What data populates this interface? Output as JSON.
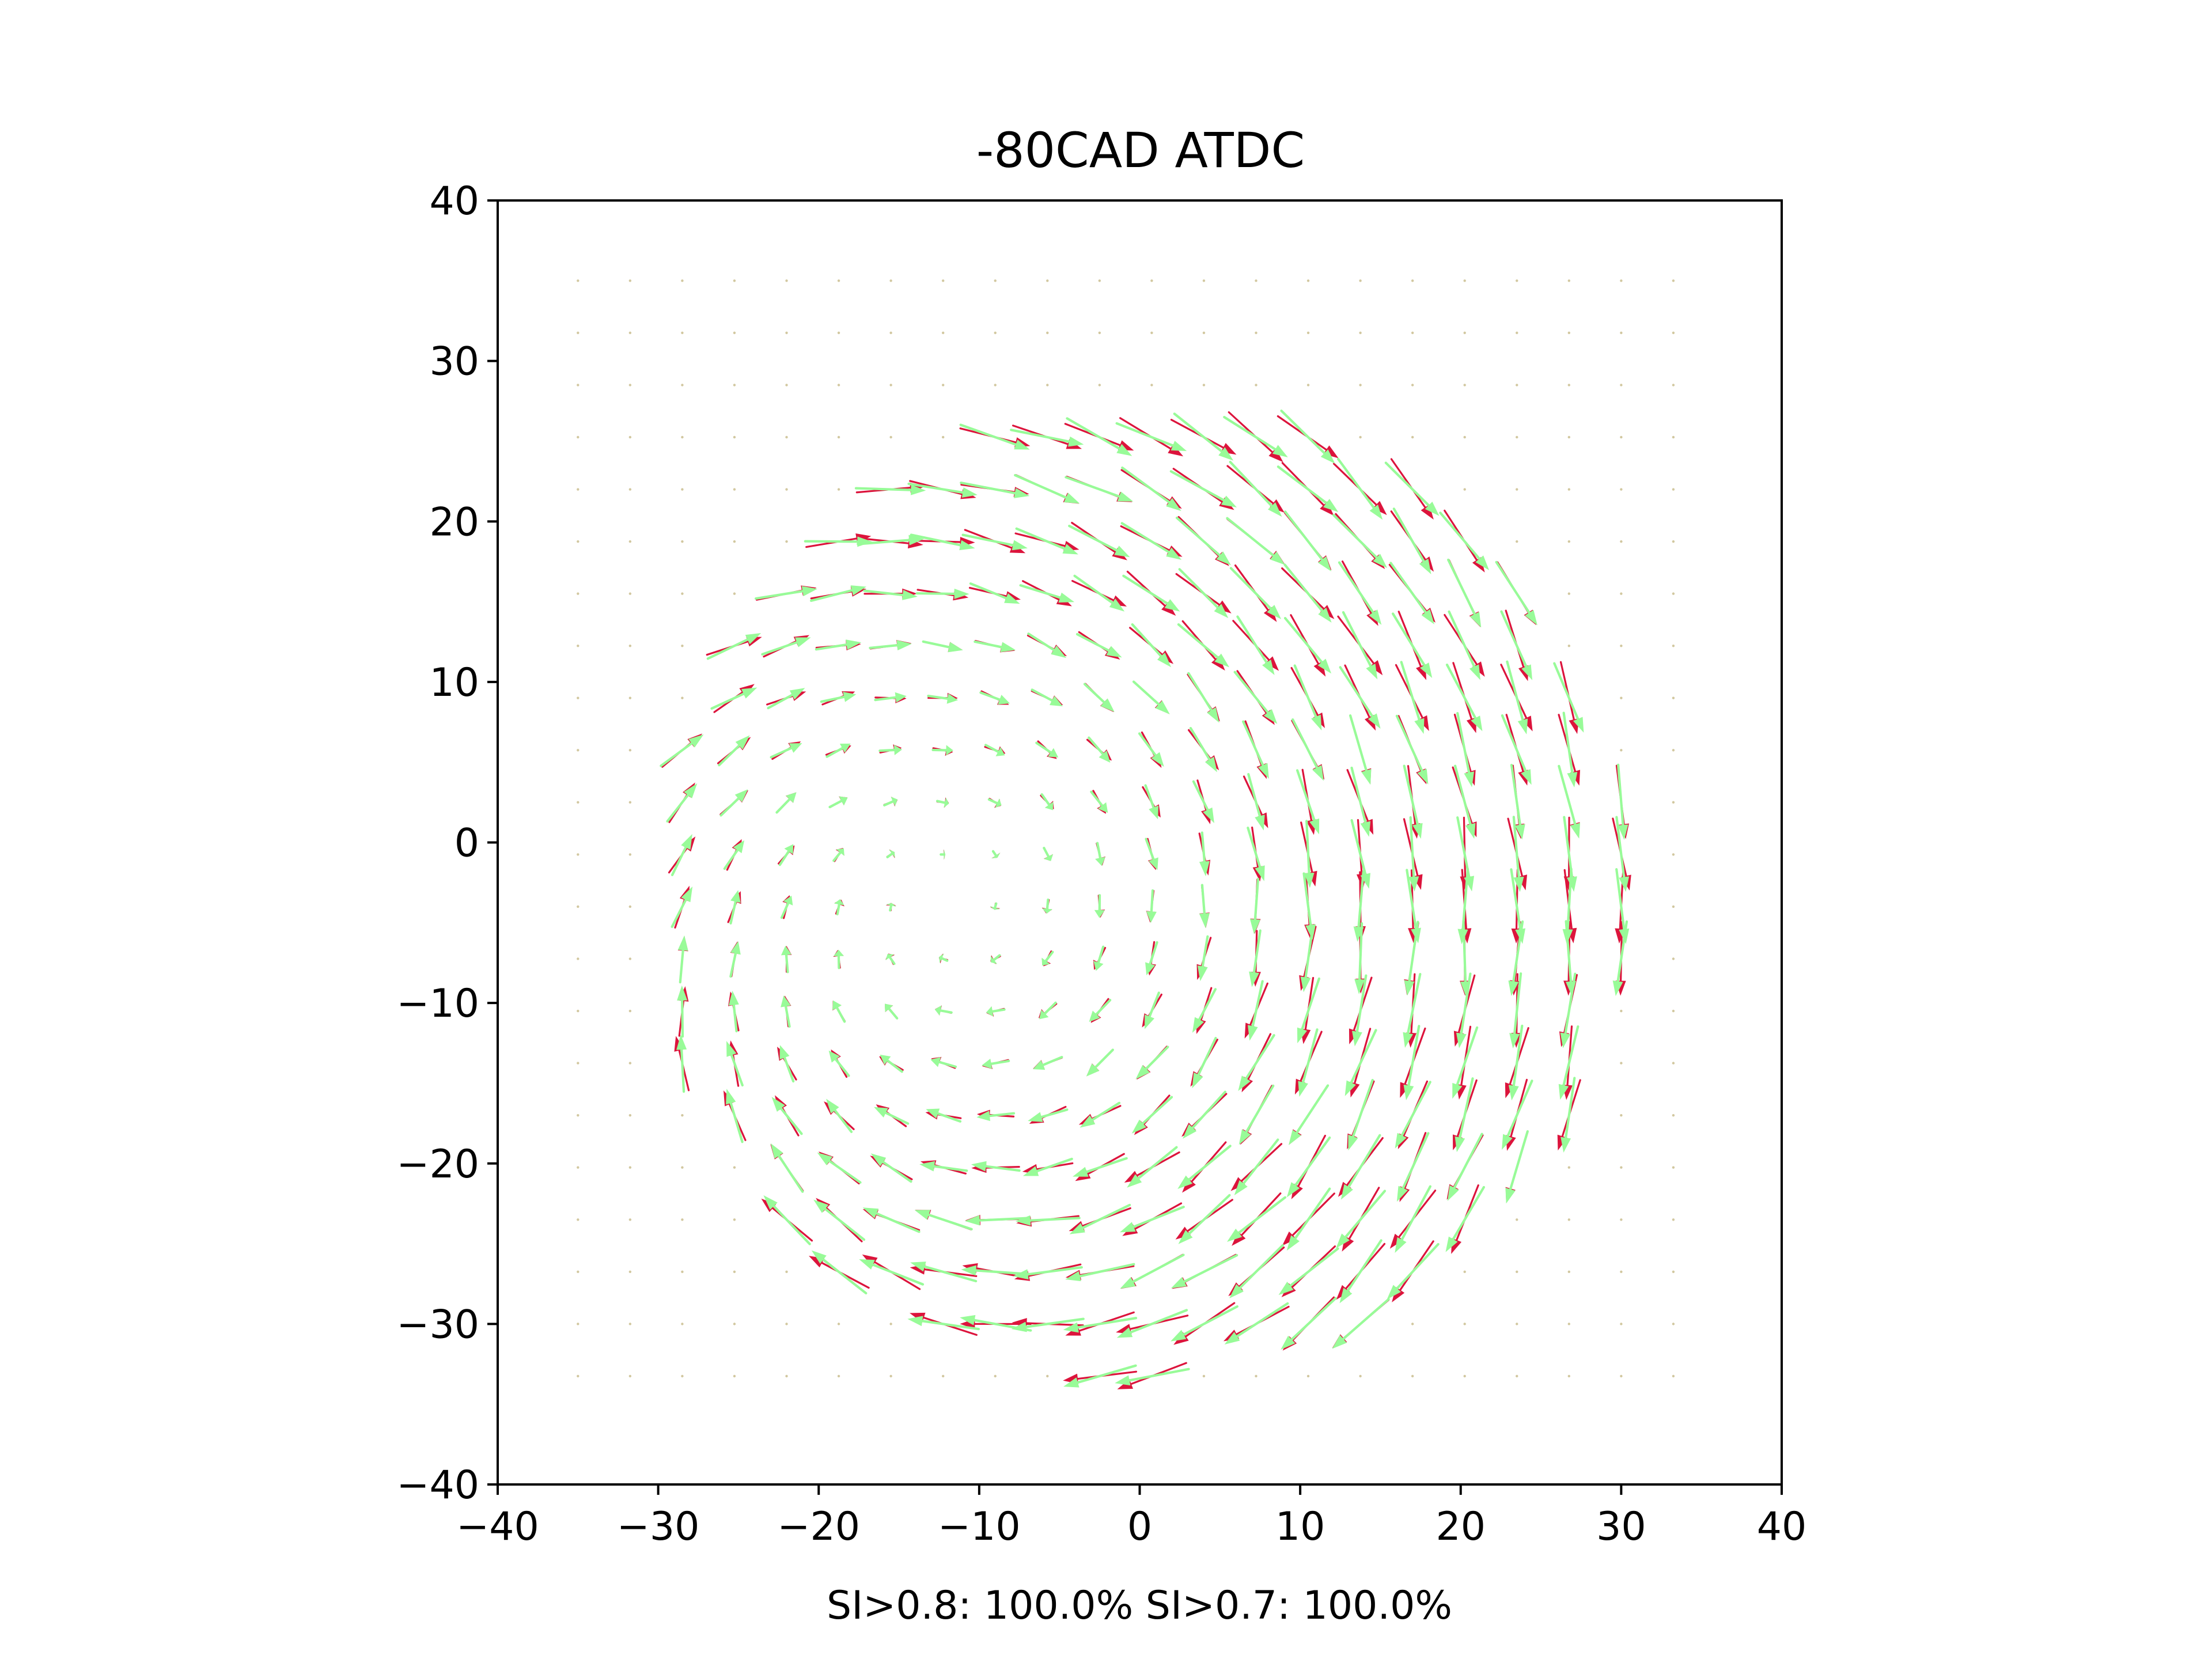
{
  "chart_data": {
    "type": "quiver",
    "title": "-80CAD ATDC",
    "xlabel": "SI>0.8: 100.0%  SI>0.7: 100.0%",
    "ylabel": "",
    "xlim": [
      -40,
      40
    ],
    "ylim": [
      -40,
      40
    ],
    "xticks": [
      -40,
      -30,
      -20,
      -10,
      0,
      10,
      20,
      30,
      40
    ],
    "yticks": [
      -40,
      -30,
      -20,
      -10,
      0,
      10,
      20,
      30,
      40
    ],
    "xtick_labels": [
      "−40",
      "−30",
      "−20",
      "−10",
      "0",
      "10",
      "20",
      "30",
      "40"
    ],
    "ytick_labels": [
      "−40",
      "−30",
      "−20",
      "−10",
      "0",
      "10",
      "20",
      "30",
      "40"
    ],
    "grid": false,
    "legend": "none",
    "vortex_center": [
      -12,
      -3
    ],
    "mask_radius": 30.5,
    "grid_spacing": 3.25,
    "grid_extent": [
      -35,
      35
    ],
    "series": [
      {
        "color": "#dc143c"
      },
      {
        "color": "#98fb98"
      }
    ],
    "background_point_color": "#d2c8a0"
  }
}
